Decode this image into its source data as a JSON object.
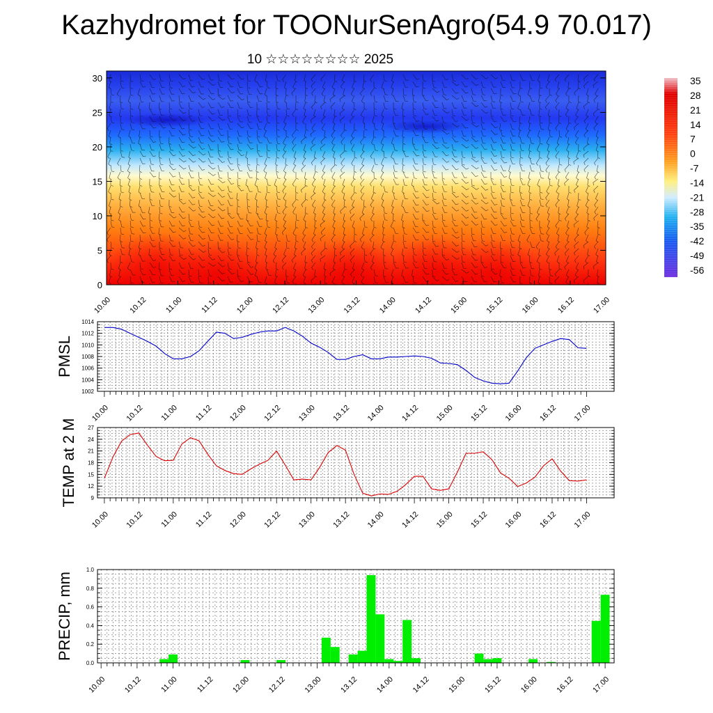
{
  "title": "Kazhydromet for TOONurSenAgro(54.9 70.017)",
  "subtitle": "10 ☆☆☆☆☆☆☆☆ 2025",
  "time_labels": [
    "10.00",
    "10.12",
    "11.00",
    "11.12",
    "12.00",
    "12.12",
    "13.00",
    "13.12",
    "14.00",
    "14.12",
    "15.00",
    "15.12",
    "16.00",
    "16.12",
    "17.00"
  ],
  "colors": {
    "pmsl_line": "#0000cc",
    "temp_line": "#dd0000",
    "precip_bar": "#00ee00"
  },
  "chart_data": [
    {
      "type": "heatmap",
      "name": "cross-section",
      "y_ticks": [
        0,
        5,
        10,
        15,
        20,
        25,
        30
      ],
      "ylim": [
        0,
        31
      ],
      "x_ticks": [
        "10.00",
        "10.12",
        "11.00",
        "11.12",
        "12.00",
        "12.12",
        "13.00",
        "13.12",
        "14.00",
        "14.12",
        "15.00",
        "15.12",
        "16.00",
        "16.12",
        "17.00"
      ],
      "colorbar": {
        "labels": [
          "35",
          "28",
          "21",
          "14",
          "7",
          "0",
          "-7",
          "-14",
          "-21",
          "-28",
          "-35",
          "-42",
          "-49",
          "-56"
        ],
        "range": [
          -60,
          36
        ]
      },
      "wind_barbs": true
    },
    {
      "type": "line",
      "ylabel": "PMSL",
      "ylim": [
        1002,
        1014
      ],
      "y_ticks": [
        1002,
        1004,
        1006,
        1008,
        1010,
        1012,
        1014
      ],
      "x_ticks": [
        "10.00",
        "10.12",
        "11.00",
        "11.12",
        "12.00",
        "12.12",
        "13.00",
        "13.12",
        "14.00",
        "14.12",
        "15.00",
        "15.12",
        "16.00",
        "16.12",
        "17.00"
      ],
      "x_index_range": [
        -0.2,
        14.8
      ],
      "grid": true,
      "x": [
        0,
        0.25,
        0.5,
        0.75,
        1,
        1.25,
        1.5,
        1.75,
        2,
        2.25,
        2.5,
        2.75,
        3,
        3.25,
        3.5,
        3.75,
        4,
        4.25,
        4.5,
        4.75,
        5,
        5.25,
        5.5,
        5.75,
        6,
        6.25,
        6.5,
        6.75,
        7,
        7.25,
        7.5,
        7.75,
        8,
        8.25,
        8.5,
        8.75,
        9,
        9.25,
        9.5,
        9.75,
        10,
        10.25,
        10.5,
        10.75,
        11,
        11.25,
        11.5,
        11.75,
        12,
        12.25,
        12.5,
        12.75,
        13,
        13.25,
        13.5,
        13.75,
        14
      ],
      "values": [
        1013,
        1013,
        1012.7,
        1012,
        1011.3,
        1010.6,
        1009.8,
        1008.5,
        1007.6,
        1007.6,
        1008,
        1009,
        1010.6,
        1012.2,
        1012,
        1011.1,
        1011.3,
        1011.8,
        1012.2,
        1012.4,
        1012.4,
        1013,
        1012.4,
        1011.5,
        1010.3,
        1009.6,
        1008.7,
        1007.5,
        1007.5,
        1008,
        1008.3,
        1007.6,
        1007.6,
        1007.9,
        1007.9,
        1008,
        1008.1,
        1008,
        1007.7,
        1006.9,
        1006.8,
        1006.6,
        1005.6,
        1004.4,
        1003.8,
        1003.4,
        1003.3,
        1003.4,
        1005.5,
        1007.8,
        1009.4,
        1010,
        1010.6,
        1011.1,
        1010.9,
        1009.5,
        1009.4
      ]
    },
    {
      "type": "line",
      "ylabel": "TEMP at 2 M",
      "ylim": [
        9,
        27
      ],
      "y_ticks": [
        9,
        12,
        15,
        18,
        21,
        24,
        27
      ],
      "x_ticks": [
        "10.00",
        "10.12",
        "11.00",
        "11.12",
        "12.00",
        "12.12",
        "13.00",
        "13.12",
        "14.00",
        "14.12",
        "15.00",
        "15.12",
        "16.00",
        "16.12",
        "17.00"
      ],
      "x_index_range": [
        -0.2,
        14.8
      ],
      "grid": true,
      "x": [
        0,
        0.25,
        0.5,
        0.75,
        1,
        1.25,
        1.5,
        1.75,
        2,
        2.25,
        2.5,
        2.75,
        3,
        3.25,
        3.5,
        3.75,
        4,
        4.25,
        4.5,
        4.75,
        5,
        5.25,
        5.5,
        5.75,
        6,
        6.25,
        6.5,
        6.75,
        7,
        7.25,
        7.5,
        7.75,
        8,
        8.25,
        8.5,
        8.75,
        9,
        9.25,
        9.5,
        9.75,
        10,
        10.25,
        10.5,
        10.75,
        11,
        11.25,
        11.5,
        11.75,
        12,
        12.25,
        12.5,
        12.75,
        13,
        13.25,
        13.5,
        13.75,
        14
      ],
      "values": [
        14,
        19.5,
        23.5,
        25.2,
        25.6,
        22.5,
        19.6,
        18.5,
        18.6,
        22.8,
        24.4,
        23.6,
        20.2,
        17.2,
        16,
        15.2,
        15,
        16.4,
        17.6,
        18.6,
        21,
        17.4,
        13.6,
        13.8,
        13.6,
        16.8,
        20.6,
        22.4,
        21.2,
        15,
        10.2,
        9.5,
        10,
        9.9,
        10.7,
        12.4,
        14.5,
        14.5,
        11.3,
        10.9,
        11.3,
        15.6,
        20.4,
        20.4,
        20.8,
        18.8,
        15.4,
        14,
        11.9,
        12.8,
        14.3,
        17.2,
        19,
        15.8,
        13.4,
        13.3,
        13.6
      ]
    },
    {
      "type": "bar",
      "ylabel": "PRECIP, mm",
      "ylim": [
        0,
        1
      ],
      "y_ticks": [
        "0.0",
        "0.2",
        "0.4",
        "0.6",
        "0.8",
        "1.0"
      ],
      "x_ticks": [
        "10.00",
        "10.12",
        "11.00",
        "11.12",
        "12.00",
        "12.12",
        "13.00",
        "13.12",
        "14.00",
        "14.12",
        "15.00",
        "15.12",
        "16.00",
        "16.12",
        "17.00"
      ],
      "x_index_range": [
        -0.1,
        14.25
      ],
      "grid": true,
      "x": [
        1.75,
        2,
        4,
        5,
        6.25,
        6.5,
        7,
        7.25,
        7.5,
        7.75,
        8,
        8.25,
        8.5,
        8.75,
        9,
        10.5,
        10.75,
        11,
        12,
        12.5,
        13.75,
        14
      ],
      "values": [
        0.04,
        0.09,
        0.03,
        0.03,
        0.27,
        0.17,
        0.09,
        0.13,
        0.94,
        0.52,
        0.04,
        0.02,
        0.46,
        0.05,
        0,
        0.1,
        0.04,
        0.05,
        0.04,
        0.01,
        0.45,
        0.73
      ]
    }
  ]
}
